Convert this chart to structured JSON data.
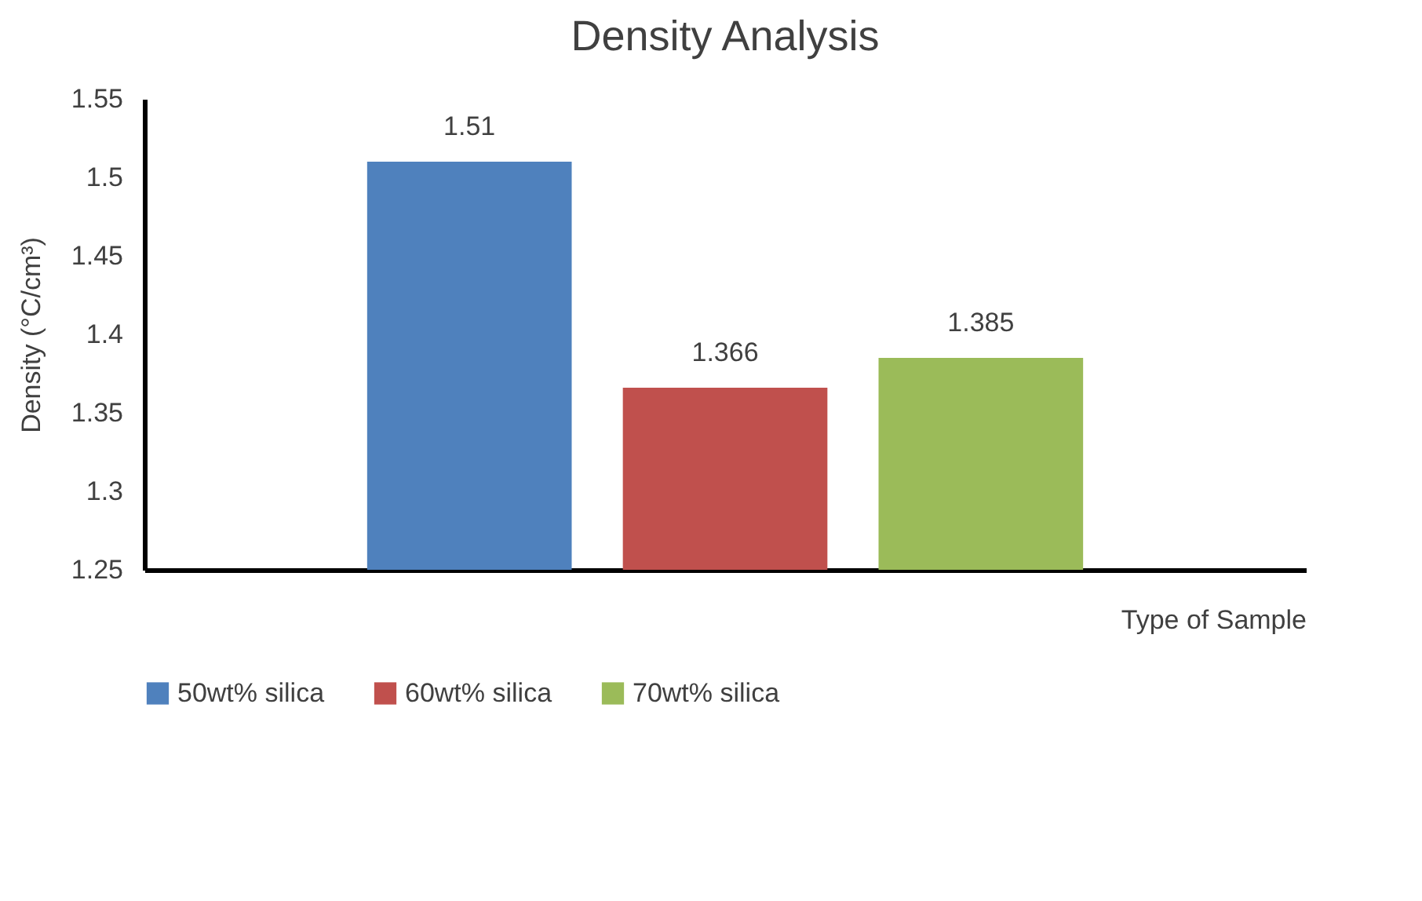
{
  "chart_data": {
    "type": "bar",
    "title": "Density Analysis",
    "xlabel": "Type of Sample",
    "ylabel": "Density (°C/cm³)",
    "categories": [
      null
    ],
    "series": [
      {
        "name": "50wt% silica",
        "color": "#4f81bd",
        "values": [
          1.51
        ]
      },
      {
        "name": "60wt% silica",
        "color": "#c0504d",
        "values": [
          1.366
        ]
      },
      {
        "name": "70wt% silica",
        "color": "#9bbb59",
        "values": [
          1.385
        ]
      }
    ],
    "ylim": [
      1.25,
      1.55
    ],
    "yticks": [
      1.25,
      1.3,
      1.35,
      1.4,
      1.45,
      1.5,
      1.55
    ],
    "data_labels": true,
    "legend": "bottom",
    "grid": false
  }
}
